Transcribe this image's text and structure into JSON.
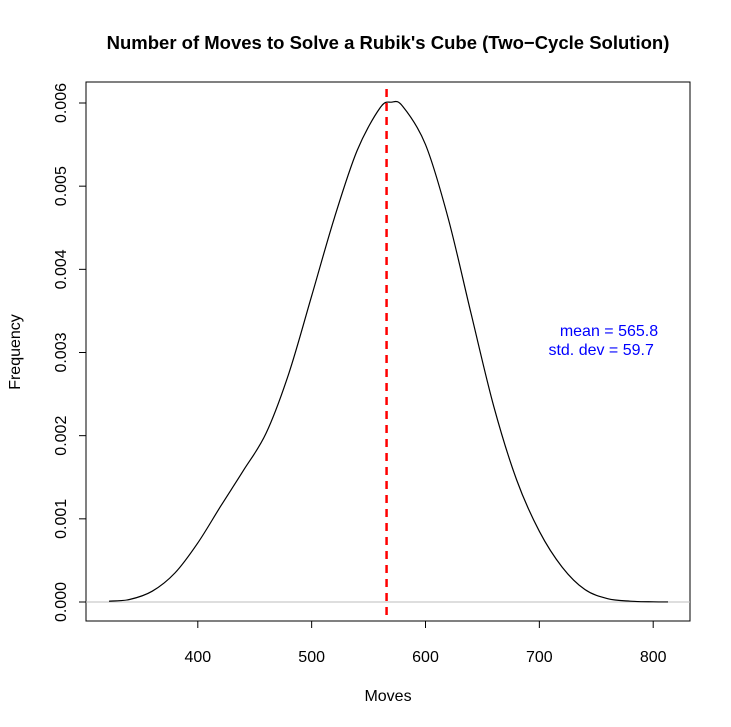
{
  "chart_data": {
    "type": "line",
    "title": "Number of Moves to Solve a Rubik's Cube (Two−Cycle Solution)",
    "xlabel": "Moves",
    "ylabel": "Frequency",
    "xlim": [
      322,
      813
    ],
    "ylim": [
      0,
      0.006
    ],
    "xticks": [
      400,
      500,
      600,
      700,
      800
    ],
    "xtick_labels": [
      "400",
      "500",
      "600",
      "700",
      "800"
    ],
    "yticks": [
      0,
      0.001,
      0.002,
      0.003,
      0.004,
      0.005,
      0.006
    ],
    "ytick_labels": [
      "0.000",
      "0.001",
      "0.002",
      "0.003",
      "0.004",
      "0.005",
      "0.006"
    ],
    "grid": false,
    "series": [
      {
        "color": "#000000",
        "x": [
          322,
          340,
          360,
          380,
          400,
          420,
          440,
          460,
          480,
          500,
          520,
          540,
          560,
          570,
          580,
          600,
          620,
          640,
          660,
          680,
          700,
          720,
          740,
          760,
          780,
          800,
          813
        ],
        "y": [
          1e-05,
          3e-05,
          0.00013,
          0.00035,
          0.00071,
          0.00115,
          0.00158,
          0.00203,
          0.00275,
          0.00368,
          0.00462,
          0.00543,
          0.00594,
          0.00601,
          0.00596,
          0.0055,
          0.00461,
          0.00347,
          0.00235,
          0.00147,
          0.00085,
          0.00042,
          0.00015,
          4e-05,
          1e-05,
          2e-06,
          5e-07
        ]
      }
    ],
    "baseline": {
      "y": 0,
      "color": "#bebebe"
    },
    "mean_line": {
      "x": 565.8,
      "color": "#ff0000",
      "style": "dashed"
    },
    "annotations": [
      {
        "text": "mean = 565.8",
        "x": 718,
        "y": 0.0032,
        "color": "#0000ff"
      },
      {
        "text": "std. dev = 59.7",
        "x": 708,
        "y": 0.00297,
        "color": "#0000ff"
      }
    ]
  }
}
